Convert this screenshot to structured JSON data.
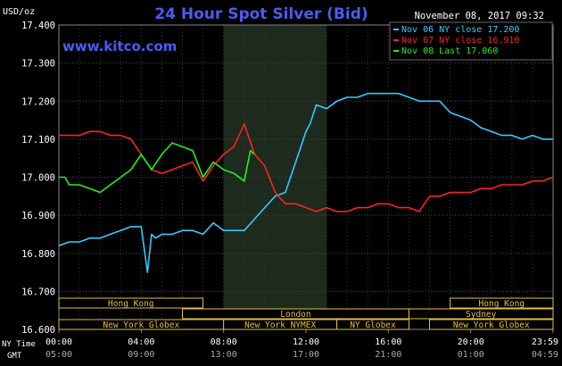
{
  "chart_data": {
    "type": "line",
    "title": "24 Hour Spot Silver (Bid)",
    "website": "www.kitco.com",
    "date_stamp": "November 08, 2017 09:32",
    "ylabel": "USD/oz",
    "ylim": [
      16.6,
      17.4
    ],
    "y_ticks": [
      "17.400",
      "17.300",
      "17.200",
      "17.100",
      "17.000",
      "16.900",
      "16.800",
      "16.700",
      "16.600"
    ],
    "x_ticks_ny": [
      "00:00",
      "04:00",
      "08:00",
      "12:00",
      "16:00",
      "20:00",
      "23:59"
    ],
    "x_ticks_gmt": [
      "05:00",
      "09:00",
      "13:00",
      "17:00",
      "21:00",
      "01:00",
      "04:59"
    ],
    "x_row_label_ny": "NY Time",
    "x_row_label_gmt": "GMT",
    "shaded_region_hours": [
      8.0,
      13.0
    ],
    "legend": [
      {
        "text": "Nov 06 NY close 17.200",
        "color": "#33ccff"
      },
      {
        "text": "Nov 07 NY close 16.910",
        "color": "#ff2222"
      },
      {
        "text": "Nov 08 Last 17.060",
        "color": "#22ee22"
      }
    ],
    "sessions": [
      {
        "label": "Hong Kong",
        "row": 0,
        "start": 0.0,
        "end": 7.0,
        "color": "#e0c040"
      },
      {
        "label": "London",
        "row": 1,
        "start": 6.0,
        "end": 17.0,
        "color": "#e0c040"
      },
      {
        "label": "New York Globex",
        "row": 2,
        "start": 0.0,
        "end": 8.0,
        "color": "#e0c040"
      },
      {
        "label": "New York NYMEX",
        "row": 2,
        "start": 8.0,
        "end": 13.5,
        "color": "#e0c040"
      },
      {
        "label": "NY Globex",
        "row": 2,
        "start": 13.5,
        "end": 17.0,
        "color": "#e0c040"
      },
      {
        "label": "Hong Kong",
        "row": 0,
        "start": 19.0,
        "end": 24.0,
        "color": "#e0c040"
      },
      {
        "label": "Sydney",
        "row": 1,
        "start": 17.0,
        "end": 24.0,
        "color": "#e0c040"
      },
      {
        "label": "New York Globex",
        "row": 2,
        "start": 18.0,
        "end": 24.0,
        "color": "#e0c040"
      }
    ],
    "series": [
      {
        "name": "Nov 06 NY close 17.200",
        "color": "#33ccff",
        "x": [
          0,
          0.5,
          1,
          1.5,
          2,
          2.5,
          3,
          3.5,
          4,
          4.3,
          4.5,
          4.7,
          5,
          5.5,
          6,
          6.5,
          7,
          7.5,
          8,
          8.5,
          9,
          9.5,
          10,
          10.5,
          11,
          11.5,
          12,
          12.2,
          12.5,
          13,
          13.5,
          14,
          14.5,
          15,
          15.5,
          16,
          16.5,
          17,
          17.5,
          18,
          18.3,
          18.5,
          19,
          19.5,
          20,
          20.5,
          21,
          21.5,
          22,
          22.5,
          23,
          23.5,
          23.99
        ],
        "y": [
          16.82,
          16.83,
          16.83,
          16.84,
          16.84,
          16.85,
          16.86,
          16.87,
          16.87,
          16.75,
          16.85,
          16.84,
          16.85,
          16.85,
          16.86,
          16.86,
          16.85,
          16.88,
          16.86,
          16.86,
          16.86,
          16.89,
          16.92,
          16.95,
          16.96,
          17.04,
          17.12,
          17.14,
          17.19,
          17.18,
          17.2,
          17.21,
          17.21,
          17.22,
          17.22,
          17.22,
          17.22,
          17.21,
          17.2,
          17.2,
          17.2,
          17.2,
          17.17,
          17.16,
          17.15,
          17.13,
          17.12,
          17.11,
          17.11,
          17.1,
          17.11,
          17.1,
          17.1
        ]
      },
      {
        "name": "Nov 07 NY close 16.910",
        "color": "#ff2222",
        "x": [
          0,
          0.5,
          1,
          1.5,
          2,
          2.5,
          3,
          3.5,
          4,
          4.5,
          5,
          5.5,
          6,
          6.5,
          7,
          7.5,
          8,
          8.5,
          9,
          9.5,
          10,
          10.5,
          11,
          11.5,
          12,
          12.5,
          13,
          13.5,
          14,
          14.5,
          15,
          15.5,
          16,
          16.5,
          17,
          17.5,
          18,
          18.5,
          19,
          19.5,
          20,
          20.5,
          21,
          21.5,
          22,
          22.5,
          23,
          23.5,
          23.99
        ],
        "y": [
          17.11,
          17.11,
          17.11,
          17.12,
          17.12,
          17.11,
          17.11,
          17.1,
          17.06,
          17.02,
          17.01,
          17.02,
          17.03,
          17.04,
          16.99,
          17.03,
          17.06,
          17.08,
          17.14,
          17.06,
          17.03,
          16.96,
          16.93,
          16.93,
          16.92,
          16.91,
          16.92,
          16.91,
          16.91,
          16.92,
          16.92,
          16.93,
          16.93,
          16.92,
          16.92,
          16.91,
          16.95,
          16.95,
          16.96,
          16.96,
          16.96,
          16.97,
          16.97,
          16.98,
          16.98,
          16.98,
          16.99,
          16.99,
          17.0
        ]
      },
      {
        "name": "Nov 08 Last 17.060",
        "color": "#22ee22",
        "x": [
          0,
          0.3,
          0.5,
          1,
          1.5,
          2,
          2.5,
          3,
          3.5,
          4,
          4.5,
          5,
          5.5,
          6,
          6.5,
          7,
          7.5,
          8,
          8.5,
          9,
          9.3,
          9.5
        ],
        "y": [
          17.0,
          17.0,
          16.98,
          16.98,
          16.97,
          16.96,
          16.98,
          17.0,
          17.02,
          17.06,
          17.02,
          17.06,
          17.09,
          17.08,
          17.07,
          17.0,
          17.04,
          17.02,
          17.01,
          16.99,
          17.07,
          17.06
        ]
      }
    ]
  }
}
